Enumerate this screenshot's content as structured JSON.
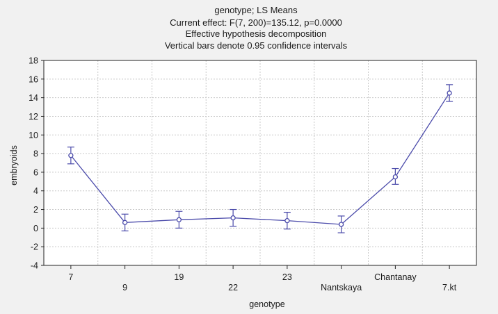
{
  "chart_data": {
    "type": "line",
    "title_lines": [
      "genotype; LS Means",
      "Current effect: F(7, 200)=135.12, p=0.0000",
      "Effective hypothesis decomposition",
      "Vertical bars denote 0.95 confidence intervals"
    ],
    "xlabel": "genotype",
    "ylabel": "embryoids",
    "categories": [
      "7",
      "9",
      "19",
      "22",
      "23",
      "Nantskaya",
      "Chantanay",
      "7.kt"
    ],
    "series": [
      {
        "values": [
          7.8,
          0.6,
          0.9,
          1.1,
          0.8,
          0.4,
          5.5,
          14.5
        ],
        "ci_low": [
          6.9,
          -0.3,
          0.0,
          0.2,
          -0.1,
          -0.5,
          4.7,
          13.6
        ],
        "ci_high": [
          8.7,
          1.5,
          1.8,
          2.0,
          1.7,
          1.3,
          6.4,
          15.4
        ]
      }
    ],
    "ylim": [
      -4,
      18
    ],
    "yticks": [
      -4,
      -2,
      0,
      2,
      4,
      6,
      8,
      10,
      12,
      14,
      16,
      18
    ],
    "grid": true,
    "line_color": "#4a4aaa",
    "grid_color": "#c8c8c8",
    "plot_background": "#ffffff"
  }
}
